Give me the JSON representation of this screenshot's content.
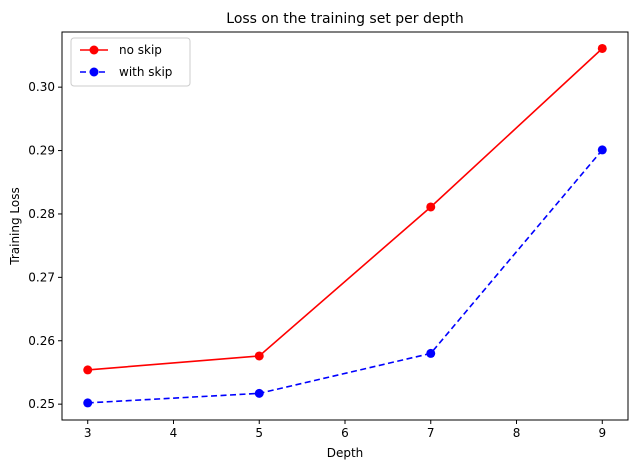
{
  "chart_data": {
    "type": "line",
    "title": "Loss on the training set per depth",
    "xlabel": "Depth",
    "ylabel": "Training Loss",
    "xlim": [
      2.7,
      9.3
    ],
    "ylim": [
      0.2475,
      0.3087
    ],
    "x_ticks": [
      3,
      4,
      5,
      6,
      7,
      8,
      9
    ],
    "y_ticks": [
      0.25,
      0.26,
      0.27,
      0.28,
      0.29,
      0.3
    ],
    "x_tick_labels": [
      "3",
      "4",
      "5",
      "6",
      "7",
      "8",
      "9"
    ],
    "y_tick_labels": [
      "0.25",
      "0.26",
      "0.27",
      "0.28",
      "0.29",
      "0.30"
    ],
    "grid": false,
    "legend_position": "upper-left",
    "series": [
      {
        "name": "no skip",
        "color": "#ff0000",
        "line_style": "solid",
        "marker": "circle",
        "x": [
          3,
          5,
          7,
          9
        ],
        "y": [
          0.2554,
          0.2576,
          0.2811,
          0.3061
        ]
      },
      {
        "name": "with skip",
        "color": "#0000ff",
        "line_style": "dashed",
        "marker": "circle",
        "x": [
          3,
          5,
          7,
          9
        ],
        "y": [
          0.2502,
          0.2517,
          0.258,
          0.2901
        ]
      }
    ]
  }
}
